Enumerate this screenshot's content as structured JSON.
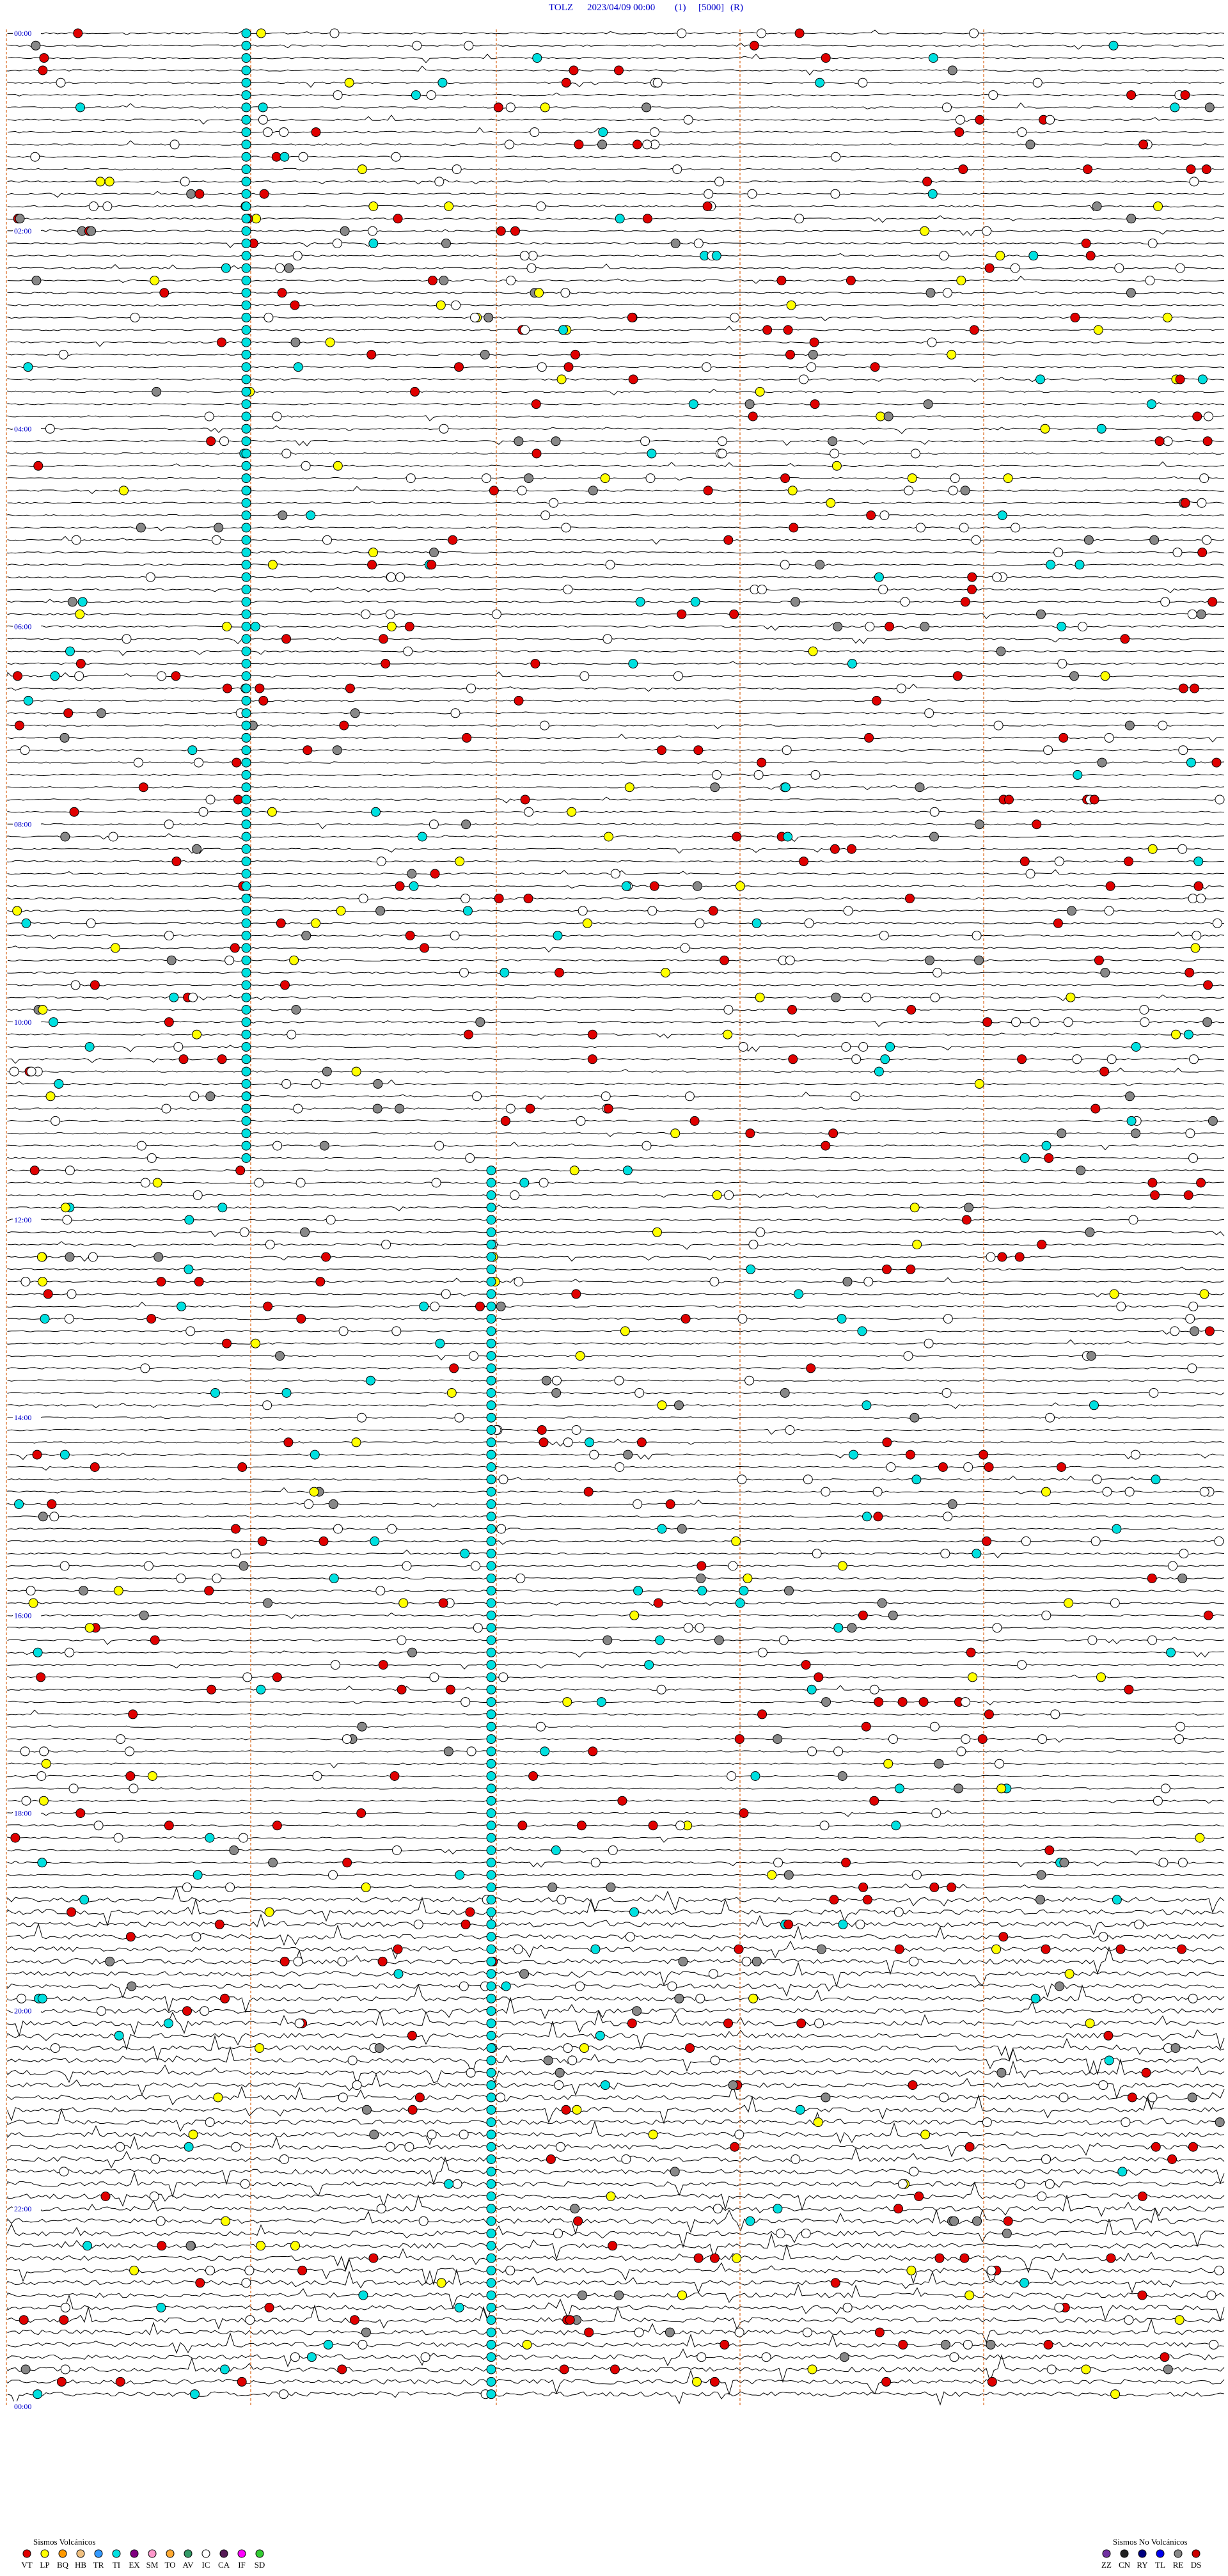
{
  "header": {
    "station": "TOLZ",
    "datetime": "2023/04/09 00:00",
    "component": "(1)",
    "scale": "[5000]",
    "mode": "(R)"
  },
  "time_labels": [
    "00:00",
    "02:00",
    "04:00",
    "06:00",
    "08:00",
    "10:00",
    "12:00",
    "14:00",
    "16:00",
    "18:00",
    "20:00",
    "22:00",
    "00:00"
  ],
  "legend": {
    "volcanic": {
      "title": "Sismos Volcánicos",
      "items": [
        {
          "code": "VT",
          "color": "#e00000"
        },
        {
          "code": "LP",
          "color": "#ffff00"
        },
        {
          "code": "BQ",
          "color": "#ff9900"
        },
        {
          "code": "HB",
          "color": "#f0c080"
        },
        {
          "code": "TR",
          "color": "#3399ff"
        },
        {
          "code": "TI",
          "color": "#00e0e0"
        },
        {
          "code": "EX",
          "color": "#800080"
        },
        {
          "code": "SM",
          "color": "#ff99cc"
        },
        {
          "code": "TO",
          "color": "#ffaa33"
        },
        {
          "code": "AV",
          "color": "#339966"
        },
        {
          "code": "IC",
          "color": "#ffffff"
        },
        {
          "code": "CA",
          "color": "#551a55"
        },
        {
          "code": "IF",
          "color": "#ff00ff"
        },
        {
          "code": "SD",
          "color": "#33cc33"
        }
      ]
    },
    "non_volcanic": {
      "title": "Sismos No Volcánicos",
      "items": [
        {
          "code": "ZZ",
          "color": "#7030a0"
        },
        {
          "code": "CN",
          "color": "#222222"
        },
        {
          "code": "RY",
          "color": "#000080"
        },
        {
          "code": "TL",
          "color": "#0000ee"
        },
        {
          "code": "RE",
          "color": "#888888"
        },
        {
          "code": "DS",
          "color": "#cc0000"
        }
      ]
    }
  }
}
